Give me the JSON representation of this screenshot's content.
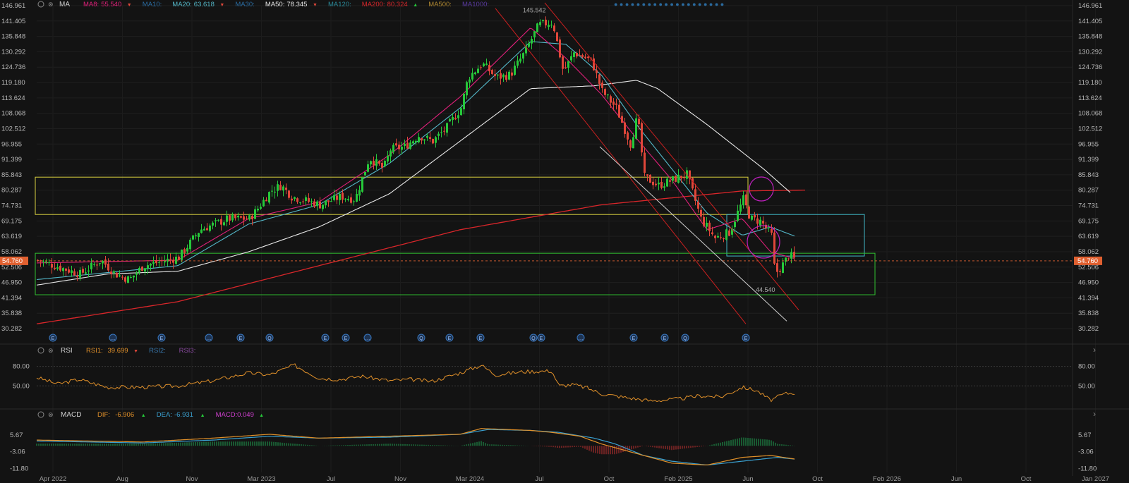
{
  "main_legend": {
    "label": "MA",
    "items": [
      {
        "name": "MA8:",
        "value": "55.540",
        "color": "#e0207a",
        "arrow": "▼"
      },
      {
        "name": "MA10:",
        "value": "",
        "color": "#2a6ba0",
        "arrow": ""
      },
      {
        "name": "MA20:",
        "value": "63.618",
        "color": "#54b8c9",
        "arrow": "▼"
      },
      {
        "name": "MA30:",
        "value": "",
        "color": "#2a6ba0",
        "arrow": ""
      },
      {
        "name": "MA50:",
        "value": "78.345",
        "color": "#e8e8e8",
        "arrow": "▼"
      },
      {
        "name": "MA120:",
        "value": "",
        "color": "#2a8a9a",
        "arrow": ""
      },
      {
        "name": "MA200:",
        "value": "80.324",
        "color": "#d8262a",
        "arrow": "▲"
      },
      {
        "name": "MA500:",
        "value": "",
        "color": "#b08830",
        "arrow": ""
      },
      {
        "name": "MA1000:",
        "value": "",
        "color": "#5a3aa0",
        "arrow": ""
      }
    ]
  },
  "price_axis": [
    "146.961",
    "141.405",
    "135.848",
    "130.292",
    "124.736",
    "119.180",
    "113.624",
    "108.068",
    "102.512",
    "96.955",
    "91.399",
    "85.843",
    "80.287",
    "74.731",
    "69.175",
    "63.619",
    "58.062",
    "52.506",
    "46.950",
    "41.394",
    "35.838",
    "30.282"
  ],
  "current_price": {
    "value": "54.760",
    "color": "#e06030"
  },
  "annotations": {
    "high": "145.542",
    "low": "44.540"
  },
  "event_markers": [
    "E",
    "…",
    "E",
    "…",
    "E",
    "Q",
    "E",
    "E",
    "…",
    "Q",
    "E",
    "E",
    "Q",
    "E",
    "…",
    "E",
    "E",
    "Q",
    "E",
    "…"
  ],
  "rsi": {
    "label": "RSI",
    "items": [
      {
        "name": "RSI1:",
        "value": "39.699",
        "color": "#e0902a",
        "arrow": "▼"
      },
      {
        "name": "RSI2:",
        "value": "",
        "color": "#3a7ab0",
        "arrow": ""
      },
      {
        "name": "RSI3:",
        "value": "",
        "color": "#8a4aa0",
        "arrow": ""
      }
    ],
    "axis": [
      "80.00",
      "50.00"
    ]
  },
  "macd": {
    "label": "MACD",
    "items": [
      {
        "name": "DIF:",
        "value": "-6.906",
        "color": "#e0902a",
        "arrow": "▲"
      },
      {
        "name": "DEA:",
        "value": "-6.931",
        "color": "#3aa0d0",
        "arrow": "▲"
      },
      {
        "name": "MACD:",
        "value": "0.049",
        "color": "#d040d0",
        "arrow": "▲"
      }
    ],
    "axis": [
      "5.67",
      "-3.06",
      "-11.80"
    ]
  },
  "time_axis": [
    "Apr 2022",
    "Aug",
    "Nov",
    "Mar 2023",
    "Jul",
    "Nov",
    "Mar 2024",
    "Jul",
    "Oct",
    "Feb 2025",
    "Jun",
    "Oct",
    "Feb 2026",
    "Jun",
    "Oct",
    "Jan 2027"
  ],
  "colors": {
    "up": "#26c83a",
    "down": "#e0473a",
    "ma8": "#e0207a",
    "ma20": "#54b8c9",
    "ma50": "#e8e8e8",
    "ma200": "#d8262a",
    "box_yellow": "#d8d040",
    "box_green": "#30c030",
    "box_cyan": "#40b8c8",
    "circle": "#c020c0",
    "channel": "#cc2020",
    "trend": "#cfcfcf"
  },
  "chart_data": {
    "type": "candlestick",
    "price_range": [
      30.282,
      146.961
    ],
    "close_anchors": [
      [
        0,
        55
      ],
      [
        60,
        50
      ],
      [
        90,
        55
      ],
      [
        110,
        50
      ],
      [
        130,
        48
      ],
      [
        150,
        53
      ],
      [
        200,
        56
      ],
      [
        230,
        66
      ],
      [
        270,
        70
      ],
      [
        300,
        70
      ],
      [
        310,
        73
      ],
      [
        330,
        80
      ],
      [
        345,
        82
      ],
      [
        360,
        78
      ],
      [
        400,
        75
      ],
      [
        430,
        78
      ],
      [
        450,
        77
      ],
      [
        470,
        92
      ],
      [
        490,
        88
      ],
      [
        500,
        95
      ],
      [
        520,
        96
      ],
      [
        540,
        100
      ],
      [
        560,
        98
      ],
      [
        580,
        103
      ],
      [
        600,
        110
      ],
      [
        610,
        121
      ],
      [
        630,
        126
      ],
      [
        650,
        121
      ],
      [
        670,
        122
      ],
      [
        690,
        130
      ],
      [
        710,
        140
      ],
      [
        730,
        141
      ],
      [
        745,
        123
      ],
      [
        760,
        130
      ],
      [
        785,
        127
      ],
      [
        800,
        116
      ],
      [
        820,
        110
      ],
      [
        840,
        97
      ],
      [
        850,
        107
      ],
      [
        860,
        85
      ],
      [
        880,
        82
      ],
      [
        900,
        84
      ],
      [
        920,
        86
      ],
      [
        940,
        70
      ],
      [
        960,
        63
      ],
      [
        980,
        65
      ],
      [
        1000,
        77
      ],
      [
        1010,
        70
      ],
      [
        1025,
        69
      ],
      [
        1040,
        64
      ],
      [
        1045,
        50
      ],
      [
        1055,
        53
      ],
      [
        1065,
        57
      ],
      [
        1075,
        54.76
      ]
    ],
    "ma200_anchors": [
      [
        0,
        32
      ],
      [
        200,
        40
      ],
      [
        400,
        53
      ],
      [
        600,
        66
      ],
      [
        800,
        75
      ],
      [
        1000,
        80
      ],
      [
        1090,
        80.324
      ]
    ],
    "ma50_anchors": [
      [
        0,
        46
      ],
      [
        100,
        50
      ],
      [
        200,
        51
      ],
      [
        300,
        58
      ],
      [
        400,
        67
      ],
      [
        500,
        79
      ],
      [
        600,
        98
      ],
      [
        700,
        117
      ],
      [
        790,
        118
      ],
      [
        850,
        120
      ],
      [
        880,
        117
      ],
      [
        950,
        104
      ],
      [
        1030,
        88
      ],
      [
        1070,
        79
      ]
    ],
    "ma20_anchors": [
      [
        0,
        48
      ],
      [
        200,
        53
      ],
      [
        300,
        68
      ],
      [
        400,
        75
      ],
      [
        500,
        90
      ],
      [
        600,
        110
      ],
      [
        700,
        134
      ],
      [
        750,
        133
      ],
      [
        800,
        122
      ],
      [
        850,
        104
      ],
      [
        900,
        88
      ],
      [
        950,
        72
      ],
      [
        1000,
        64
      ],
      [
        1040,
        67
      ],
      [
        1075,
        63.618
      ]
    ],
    "ma8_anchors": [
      [
        0,
        54
      ],
      [
        200,
        55
      ],
      [
        300,
        70
      ],
      [
        400,
        76
      ],
      [
        500,
        93
      ],
      [
        600,
        114
      ],
      [
        700,
        139
      ],
      [
        750,
        128
      ],
      [
        800,
        115
      ],
      [
        850,
        99
      ],
      [
        900,
        84
      ],
      [
        950,
        66
      ],
      [
        1000,
        70
      ],
      [
        1040,
        58
      ],
      [
        1075,
        55.54
      ]
    ],
    "channel_top": [
      [
        720,
        148
      ],
      [
        1080,
        37
      ]
    ],
    "channel_bottom": [
      [
        650,
        146
      ],
      [
        1005,
        32
      ]
    ],
    "trend_line": [
      [
        798,
        96
      ],
      [
        1063,
        33
      ]
    ],
    "zones": [
      {
        "type": "yellow",
        "x": [
          50,
          1060
        ],
        "y": [
          71.5,
          85
        ]
      },
      {
        "type": "cyan",
        "x": [
          1030,
          1225
        ],
        "y": [
          56.5,
          71.5
        ]
      },
      {
        "type": "green",
        "x": [
          50,
          1240
        ],
        "y": [
          42.5,
          57.5
        ]
      }
    ],
    "rsi_range": [
      20,
      85
    ],
    "rsi_anchors": [
      [
        0,
        63
      ],
      [
        30,
        53
      ],
      [
        60,
        60
      ],
      [
        100,
        48
      ],
      [
        150,
        48
      ],
      [
        200,
        50
      ],
      [
        250,
        58
      ],
      [
        300,
        70
      ],
      [
        330,
        67
      ],
      [
        365,
        82
      ],
      [
        400,
        62
      ],
      [
        430,
        60
      ],
      [
        460,
        65
      ],
      [
        500,
        58
      ],
      [
        530,
        60
      ],
      [
        560,
        57
      ],
      [
        600,
        70
      ],
      [
        630,
        82
      ],
      [
        650,
        67
      ],
      [
        690,
        72
      ],
      [
        730,
        73
      ],
      [
        740,
        50
      ],
      [
        760,
        52
      ],
      [
        780,
        47
      ],
      [
        800,
        38
      ],
      [
        830,
        33
      ],
      [
        870,
        27
      ],
      [
        910,
        30
      ],
      [
        940,
        35
      ],
      [
        970,
        33
      ],
      [
        1000,
        48
      ],
      [
        1020,
        43
      ],
      [
        1040,
        28
      ],
      [
        1060,
        38
      ],
      [
        1075,
        39.699
      ]
    ],
    "macd_range": [
      -12,
      10
    ],
    "dif_anchors": [
      [
        0,
        3
      ],
      [
        150,
        2
      ],
      [
        250,
        4
      ],
      [
        330,
        6
      ],
      [
        400,
        4
      ],
      [
        500,
        5
      ],
      [
        600,
        6
      ],
      [
        630,
        9
      ],
      [
        700,
        8
      ],
      [
        730,
        7
      ],
      [
        770,
        5
      ],
      [
        800,
        1
      ],
      [
        850,
        -4
      ],
      [
        900,
        -9
      ],
      [
        950,
        -10
      ],
      [
        1000,
        -6
      ],
      [
        1040,
        -5
      ],
      [
        1075,
        -6.906
      ]
    ],
    "dea_anchors": [
      [
        0,
        2.5
      ],
      [
        150,
        1.5
      ],
      [
        250,
        3
      ],
      [
        330,
        5
      ],
      [
        400,
        4
      ],
      [
        500,
        4.5
      ],
      [
        600,
        6
      ],
      [
        640,
        8.5
      ],
      [
        700,
        8
      ],
      [
        740,
        7
      ],
      [
        790,
        4
      ],
      [
        820,
        1
      ],
      [
        860,
        -5
      ],
      [
        900,
        -8
      ],
      [
        950,
        -10
      ],
      [
        1000,
        -8
      ],
      [
        1050,
        -6
      ],
      [
        1075,
        -6.931
      ]
    ]
  }
}
